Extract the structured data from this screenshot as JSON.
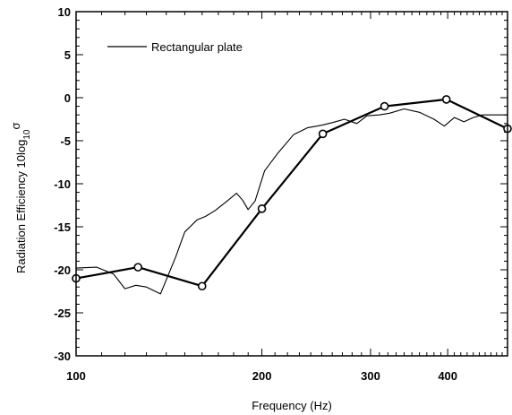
{
  "chart_data": {
    "type": "line",
    "xlabel": "Frequency (Hz)",
    "ylabel": {
      "prefix": "Radiation Efficiency 10log",
      "subscript": "10",
      "symbol": "σ"
    },
    "x_scale": "log",
    "xlim": [
      100,
      500
    ],
    "ylim": [
      -30,
      10
    ],
    "x_ticks": [
      100,
      200,
      300,
      400
    ],
    "y_ticks": [
      10,
      5,
      0,
      -5,
      -10,
      -15,
      -20,
      -25,
      -30
    ],
    "grid": false,
    "legend_position": "top-left",
    "series": [
      {
        "name": "Rectangular plate",
        "style": "thin-line",
        "color": "#000000",
        "x": [
          100,
          108,
          115,
          120,
          125,
          130,
          137,
          145,
          150,
          157,
          162,
          168,
          175,
          182,
          186,
          190,
          195,
          202,
          212,
          225,
          237,
          250,
          260,
          272,
          285,
          296,
          310,
          322,
          340,
          360,
          380,
          395,
          410,
          425,
          440,
          455,
          475,
          500
        ],
        "values": [
          -19.8,
          -19.7,
          -20.5,
          -22.2,
          -21.8,
          -22.0,
          -22.8,
          -18.5,
          -15.6,
          -14.2,
          -13.8,
          -13.1,
          -12.1,
          -11.1,
          -11.9,
          -13.0,
          -12.0,
          -8.5,
          -6.5,
          -4.3,
          -3.5,
          -3.2,
          -2.9,
          -2.5,
          -3.0,
          -2.1,
          -2.0,
          -1.8,
          -1.3,
          -1.7,
          -2.5,
          -3.3,
          -2.3,
          -2.8,
          -2.3,
          -2.0,
          -2.0,
          -2.0
        ]
      },
      {
        "name": "",
        "style": "thick-line-circle-markers",
        "color": "#000000",
        "x": [
          100,
          126,
          160,
          200,
          251,
          316,
          398,
          500
        ],
        "values": [
          -21.0,
          -19.7,
          -21.9,
          -12.9,
          -4.2,
          -1.0,
          -0.2,
          -3.6
        ]
      }
    ]
  }
}
